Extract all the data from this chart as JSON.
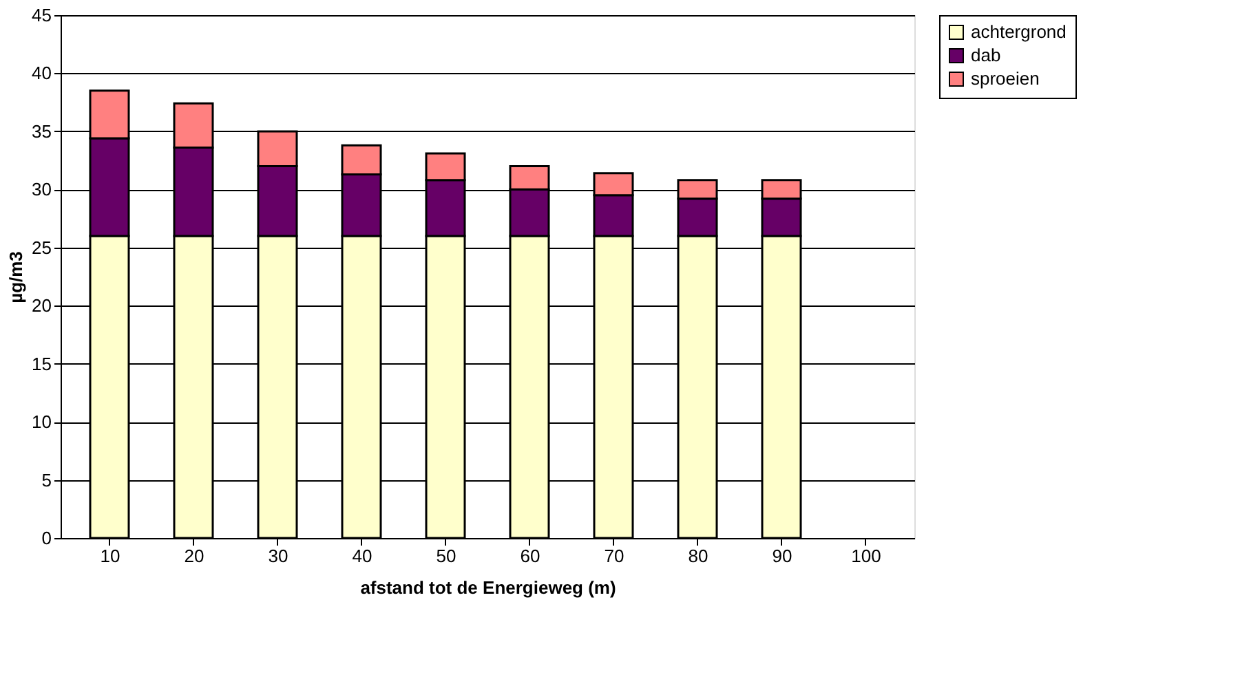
{
  "chart_data": {
    "type": "bar",
    "stacked": true,
    "xlabel": "afstand tot de Energieweg (m)",
    "ylabel": "µg/m3",
    "categories": [
      "10",
      "20",
      "30",
      "40",
      "50",
      "60",
      "70",
      "80",
      "90",
      "100"
    ],
    "series": [
      {
        "name": "achtergrond",
        "color": "#ffffcc",
        "values": [
          26,
          26,
          26,
          26,
          26,
          26,
          26,
          26,
          26,
          null
        ]
      },
      {
        "name": "dab",
        "color": "#660066",
        "values": [
          8.4,
          7.6,
          6.0,
          5.3,
          4.8,
          4.0,
          3.5,
          3.2,
          3.2,
          null
        ]
      },
      {
        "name": "sproeien",
        "color": "#ff8080",
        "values": [
          4.1,
          3.8,
          3.0,
          2.5,
          2.3,
          2.0,
          1.9,
          1.6,
          1.6,
          null
        ]
      }
    ],
    "ylim": [
      0,
      45
    ],
    "yticks": [
      0,
      5,
      10,
      15,
      20,
      25,
      30,
      35,
      40,
      45
    ],
    "grid": "y",
    "legend": "right"
  }
}
